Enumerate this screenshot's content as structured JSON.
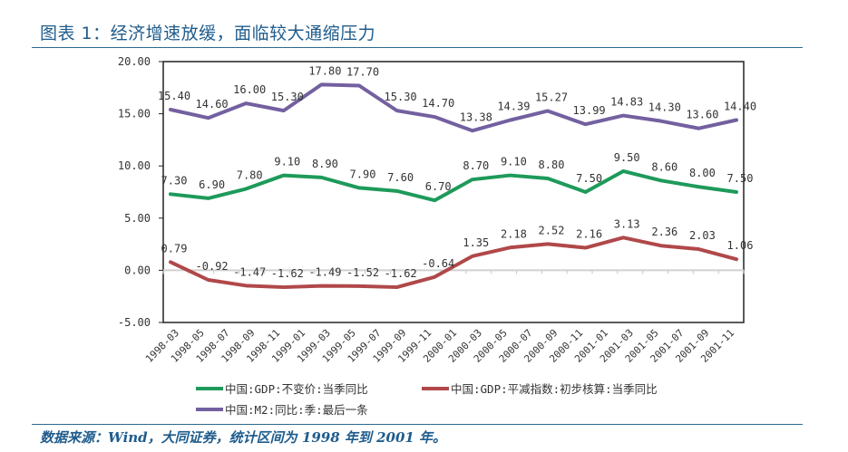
{
  "header": {
    "title": "图表 1：经济增速放缓，面临较大通缩压力"
  },
  "footer": {
    "source": "数据来源：Wind，大同证券，统计区间为 1998 年到 2001 年。"
  },
  "chart_data": {
    "type": "line",
    "title": "图表 1：经济增速放缓，面临较大通缩压力",
    "xlabel": "",
    "ylabel": "",
    "ylim": [
      -5,
      20
    ],
    "yticks": [
      20,
      15,
      10,
      5,
      0,
      -5
    ],
    "ytick_labels": [
      "20.00",
      "15.00",
      "10.00",
      "5.00",
      "0.00",
      "-5.00"
    ],
    "grid": false,
    "legend_position": "bottom",
    "categories": [
      "1998-03",
      "1998-05",
      "1998-07",
      "1998-09",
      "1998-11",
      "1999-01",
      "1999-03",
      "1999-05",
      "1999-07",
      "1999-09",
      "1999-11",
      "2000-01",
      "2000-03",
      "2000-05",
      "2000-07",
      "2000-09",
      "2000-11",
      "2001-01",
      "2001-03",
      "2001-05",
      "2001-07",
      "2001-09",
      "2001-11"
    ],
    "x_points": [
      "1998-03",
      "1998-06",
      "1998-09",
      "1998-12",
      "1999-03",
      "1999-06",
      "1999-09",
      "1999-12",
      "2000-03",
      "2000-06",
      "2000-09",
      "2000-12",
      "2001-03",
      "2001-06",
      "2001-09",
      "2001-12"
    ],
    "series": [
      {
        "name": "中国:GDP:不变价:当季同比",
        "color": "#1e9a5a",
        "values": [
          7.3,
          6.9,
          7.8,
          9.1,
          8.9,
          7.9,
          7.6,
          6.7,
          8.7,
          9.1,
          8.8,
          7.5,
          9.5,
          8.6,
          8.0,
          7.5
        ],
        "labels": [
          "7.30",
          "6.90",
          "7.80",
          "9.10",
          "8.90",
          "7.90",
          "7.60",
          "6.70",
          "8.70",
          "9.10",
          "8.80",
          "7.50",
          "9.50",
          "8.60",
          "8.00",
          "7.50"
        ]
      },
      {
        "name": "中国:GDP:平减指数:初步核算:当季同比",
        "color": "#b0484a",
        "values": [
          0.79,
          -0.92,
          -1.47,
          -1.62,
          -1.49,
          -1.52,
          -1.62,
          -0.64,
          1.35,
          2.18,
          2.52,
          2.16,
          3.13,
          2.36,
          2.03,
          1.06
        ],
        "labels": [
          "0.79",
          "-0.92",
          "-1.47",
          "-1.62",
          "-1.49",
          "-1.52",
          "-1.62",
          "-0.64",
          "1.35",
          "2.18",
          "2.52",
          "2.16",
          "3.13",
          "2.36",
          "2.03",
          "1.06"
        ]
      },
      {
        "name": "中国:M2:同比:季:最后一条",
        "color": "#7360a0",
        "values": [
          15.4,
          14.6,
          16.0,
          15.3,
          17.8,
          17.7,
          15.3,
          14.7,
          13.38,
          14.39,
          15.27,
          13.99,
          14.83,
          14.3,
          13.6,
          14.4
        ],
        "labels": [
          "15.40",
          "14.60",
          "16.00",
          "15.30",
          "17.80",
          "17.70",
          "15.30",
          "14.70",
          "13.38",
          "14.39",
          "15.27",
          "13.99",
          "14.83",
          "14.30",
          "13.60",
          "14.40"
        ]
      }
    ]
  }
}
